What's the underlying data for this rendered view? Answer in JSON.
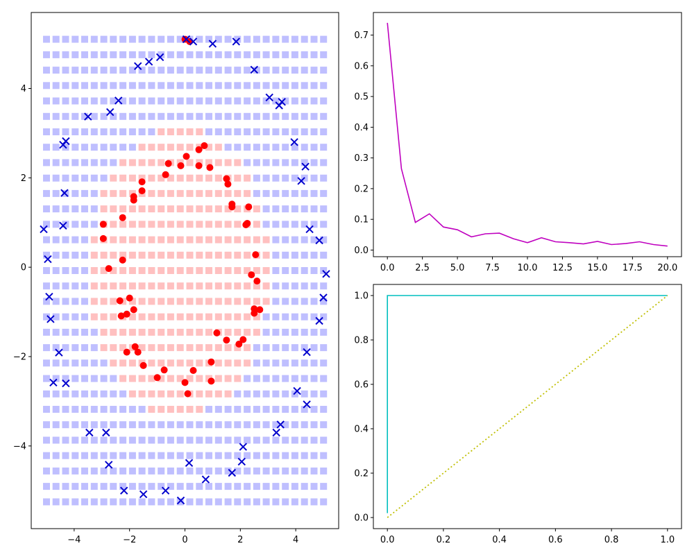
{
  "chart_data": [
    {
      "type": "scatter",
      "title": "",
      "xlabel": "",
      "ylabel": "",
      "xlim": [
        -5.55,
        5.55
      ],
      "ylim": [
        -5.85,
        5.7
      ],
      "xticks": [
        -4,
        -2,
        0,
        2,
        4
      ],
      "xtick_labels": [
        "−4",
        "−2",
        "0",
        "2",
        "4"
      ],
      "yticks": [
        -4,
        -2,
        0,
        2,
        4
      ],
      "ytick_labels": [
        "−4",
        "−2",
        "0",
        "2",
        "4"
      ],
      "grid": false,
      "decision_grid": {
        "x_start": -5.0,
        "x_step": 0.345,
        "x_count": 30,
        "y_start": 5.1,
        "y_step": -0.345,
        "y_count": 31,
        "outside_color": "#bfbfff",
        "inside_color": "#ffc0c0",
        "inside_center": [
          -0.2,
          -0.1
        ],
        "inside_radius": 3.25
      },
      "series": [
        {
          "marker": "circle",
          "color": "#ff0000",
          "points": [
            [
              0.0,
              5.1
            ],
            [
              0.17,
              5.05
            ],
            [
              0.7,
              2.72
            ],
            [
              0.5,
              2.63
            ],
            [
              0.05,
              2.48
            ],
            [
              -0.6,
              2.32
            ],
            [
              -0.15,
              2.27
            ],
            [
              0.5,
              2.27
            ],
            [
              0.9,
              2.23
            ],
            [
              -0.7,
              2.07
            ],
            [
              1.5,
              1.98
            ],
            [
              -1.55,
              1.91
            ],
            [
              1.55,
              1.86
            ],
            [
              -1.55,
              1.71
            ],
            [
              -1.85,
              1.58
            ],
            [
              -1.85,
              1.5
            ],
            [
              1.7,
              1.41
            ],
            [
              1.7,
              1.35
            ],
            [
              2.3,
              1.35
            ],
            [
              -2.25,
              1.11
            ],
            [
              -2.95,
              0.96
            ],
            [
              2.25,
              0.98
            ],
            [
              2.2,
              0.95
            ],
            [
              -2.95,
              0.64
            ],
            [
              2.55,
              0.28
            ],
            [
              -2.25,
              0.16
            ],
            [
              -2.75,
              -0.03
            ],
            [
              2.4,
              -0.17
            ],
            [
              2.6,
              -0.31
            ],
            [
              -2.0,
              -0.69
            ],
            [
              -2.35,
              -0.75
            ],
            [
              2.5,
              -0.93
            ],
            [
              2.7,
              -0.95
            ],
            [
              -1.85,
              -0.95
            ],
            [
              2.5,
              -1.03
            ],
            [
              -2.1,
              -1.05
            ],
            [
              -2.3,
              -1.09
            ],
            [
              1.15,
              -1.47
            ],
            [
              1.5,
              -1.63
            ],
            [
              2.1,
              -1.62
            ],
            [
              1.95,
              -1.72
            ],
            [
              -1.8,
              -1.78
            ],
            [
              -2.1,
              -1.9
            ],
            [
              -1.7,
              -1.9
            ],
            [
              0.95,
              -2.12
            ],
            [
              -1.5,
              -2.2
            ],
            [
              -0.75,
              -2.3
            ],
            [
              0.3,
              -2.31
            ],
            [
              -1.0,
              -2.47
            ],
            [
              0.95,
              -2.55
            ],
            [
              0.0,
              -2.58
            ],
            [
              0.1,
              -2.83
            ]
          ]
        },
        {
          "marker": "x",
          "color": "#0000cd",
          "points": [
            [
              0.05,
              5.1
            ],
            [
              0.3,
              5.05
            ],
            [
              1.0,
              5.0
            ],
            [
              1.85,
              5.05
            ],
            [
              -0.9,
              4.7
            ],
            [
              -1.3,
              4.6
            ],
            [
              -1.7,
              4.5
            ],
            [
              2.5,
              4.42
            ],
            [
              -2.4,
              3.73
            ],
            [
              3.05,
              3.8
            ],
            [
              3.5,
              3.7
            ],
            [
              3.4,
              3.62
            ],
            [
              -2.7,
              3.47
            ],
            [
              -3.5,
              3.37
            ],
            [
              -4.3,
              2.82
            ],
            [
              -4.4,
              2.74
            ],
            [
              3.95,
              2.8
            ],
            [
              4.35,
              2.25
            ],
            [
              4.2,
              1.93
            ],
            [
              -4.35,
              1.66
            ],
            [
              -5.1,
              0.85
            ],
            [
              -4.4,
              0.93
            ],
            [
              4.5,
              0.85
            ],
            [
              4.85,
              0.6
            ],
            [
              -4.95,
              0.18
            ],
            [
              5.1,
              -0.15
            ],
            [
              -4.9,
              -0.66
            ],
            [
              5.0,
              -0.68
            ],
            [
              -4.85,
              -1.16
            ],
            [
              4.85,
              -1.2
            ],
            [
              -4.55,
              -1.91
            ],
            [
              4.4,
              -1.9
            ],
            [
              -4.75,
              -2.58
            ],
            [
              -4.3,
              -2.6
            ],
            [
              4.05,
              -2.77
            ],
            [
              4.4,
              -3.07
            ],
            [
              3.45,
              -3.52
            ],
            [
              3.3,
              -3.7
            ],
            [
              -3.45,
              -3.7
            ],
            [
              -2.85,
              -3.7
            ],
            [
              2.1,
              -4.02
            ],
            [
              2.05,
              -4.35
            ],
            [
              0.15,
              -4.38
            ],
            [
              -2.75,
              -4.42
            ],
            [
              1.7,
              -4.6
            ],
            [
              0.75,
              -4.75
            ],
            [
              -2.2,
              -5.0
            ],
            [
              -1.5,
              -5.08
            ],
            [
              -0.7,
              -5.0
            ],
            [
              -0.15,
              -5.22
            ]
          ]
        }
      ]
    },
    {
      "type": "line",
      "title": "",
      "xlabel": "",
      "ylabel": "",
      "xlim": [
        -1.0,
        21.0
      ],
      "ylim": [
        -0.0216,
        0.7736
      ],
      "xticks": [
        0,
        2.5,
        5,
        7.5,
        10,
        12.5,
        15,
        17.5,
        20
      ],
      "xtick_labels": [
        "0.0",
        "2.5",
        "5.0",
        "7.5",
        "10.0",
        "12.5",
        "15.0",
        "17.5",
        "20.0"
      ],
      "yticks": [
        0.0,
        0.1,
        0.2,
        0.3,
        0.4,
        0.5,
        0.6,
        0.7
      ],
      "ytick_labels": [
        "0.0",
        "0.1",
        "0.2",
        "0.3",
        "0.4",
        "0.5",
        "0.6",
        "0.7"
      ],
      "grid": false,
      "series": [
        {
          "color": "#bf00bf",
          "x": [
            0,
            1,
            2,
            3,
            4,
            5,
            6,
            7,
            8,
            9,
            10,
            11,
            12,
            13,
            14,
            15,
            16,
            17,
            18,
            19,
            20
          ],
          "values": [
            0.74,
            0.265,
            0.09,
            0.118,
            0.075,
            0.066,
            0.043,
            0.053,
            0.055,
            0.037,
            0.024,
            0.04,
            0.027,
            0.024,
            0.02,
            0.028,
            0.018,
            0.021,
            0.027,
            0.018,
            0.013
          ]
        }
      ]
    },
    {
      "type": "line",
      "title": "",
      "xlabel": "",
      "ylabel": "",
      "xlim": [
        -0.05,
        1.05
      ],
      "ylim": [
        -0.05,
        1.05
      ],
      "xticks": [
        0.0,
        0.2,
        0.4,
        0.6,
        0.8,
        1.0
      ],
      "xtick_labels": [
        "0.0",
        "0.2",
        "0.4",
        "0.6",
        "0.8",
        "1.0"
      ],
      "yticks": [
        0.0,
        0.2,
        0.4,
        0.6,
        0.8,
        1.0
      ],
      "ytick_labels": [
        "0.0",
        "0.2",
        "0.4",
        "0.6",
        "0.8",
        "1.0"
      ],
      "grid": false,
      "series": [
        {
          "color": "#00bfbf",
          "style": "solid",
          "x": [
            0,
            0,
            1
          ],
          "values": [
            0.02,
            1.0,
            1.0
          ]
        },
        {
          "color": "#bfbf00",
          "style": "dotted",
          "x": [
            0,
            1
          ],
          "values": [
            0,
            1
          ]
        }
      ]
    }
  ]
}
